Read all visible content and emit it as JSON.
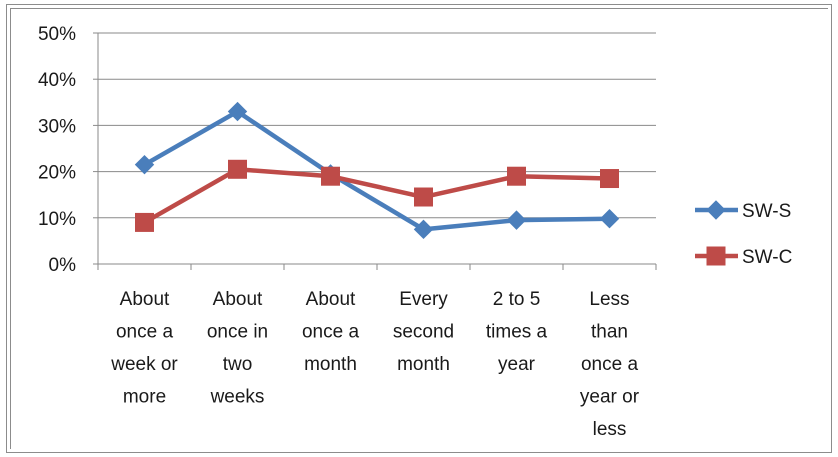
{
  "chart_data": {
    "type": "line",
    "title": "",
    "xlabel": "",
    "ylabel": "",
    "ylim": [
      0,
      50
    ],
    "y_tick_labels": [
      "0%",
      "10%",
      "20%",
      "30%",
      "40%",
      "50%"
    ],
    "grid": true,
    "legend_position": "right",
    "categories": [
      [
        "About",
        "once a",
        "week or",
        "more"
      ],
      [
        "About",
        "once in",
        "two",
        "weeks"
      ],
      [
        "About",
        "once a",
        "month"
      ],
      [
        "Every",
        "second",
        "month"
      ],
      [
        "2 to 5",
        "times a",
        "year"
      ],
      [
        "Less",
        "than",
        "once a",
        "year or",
        "less"
      ]
    ],
    "series": [
      {
        "name": "SW-S",
        "color": "#4a7ebb",
        "marker": "diamond",
        "values": [
          21.5,
          33,
          19.5,
          7.5,
          9.5,
          9.8
        ]
      },
      {
        "name": "SW-C",
        "color": "#be4b48",
        "marker": "square",
        "values": [
          9,
          20.5,
          19,
          14.5,
          19,
          18.5
        ]
      }
    ]
  }
}
